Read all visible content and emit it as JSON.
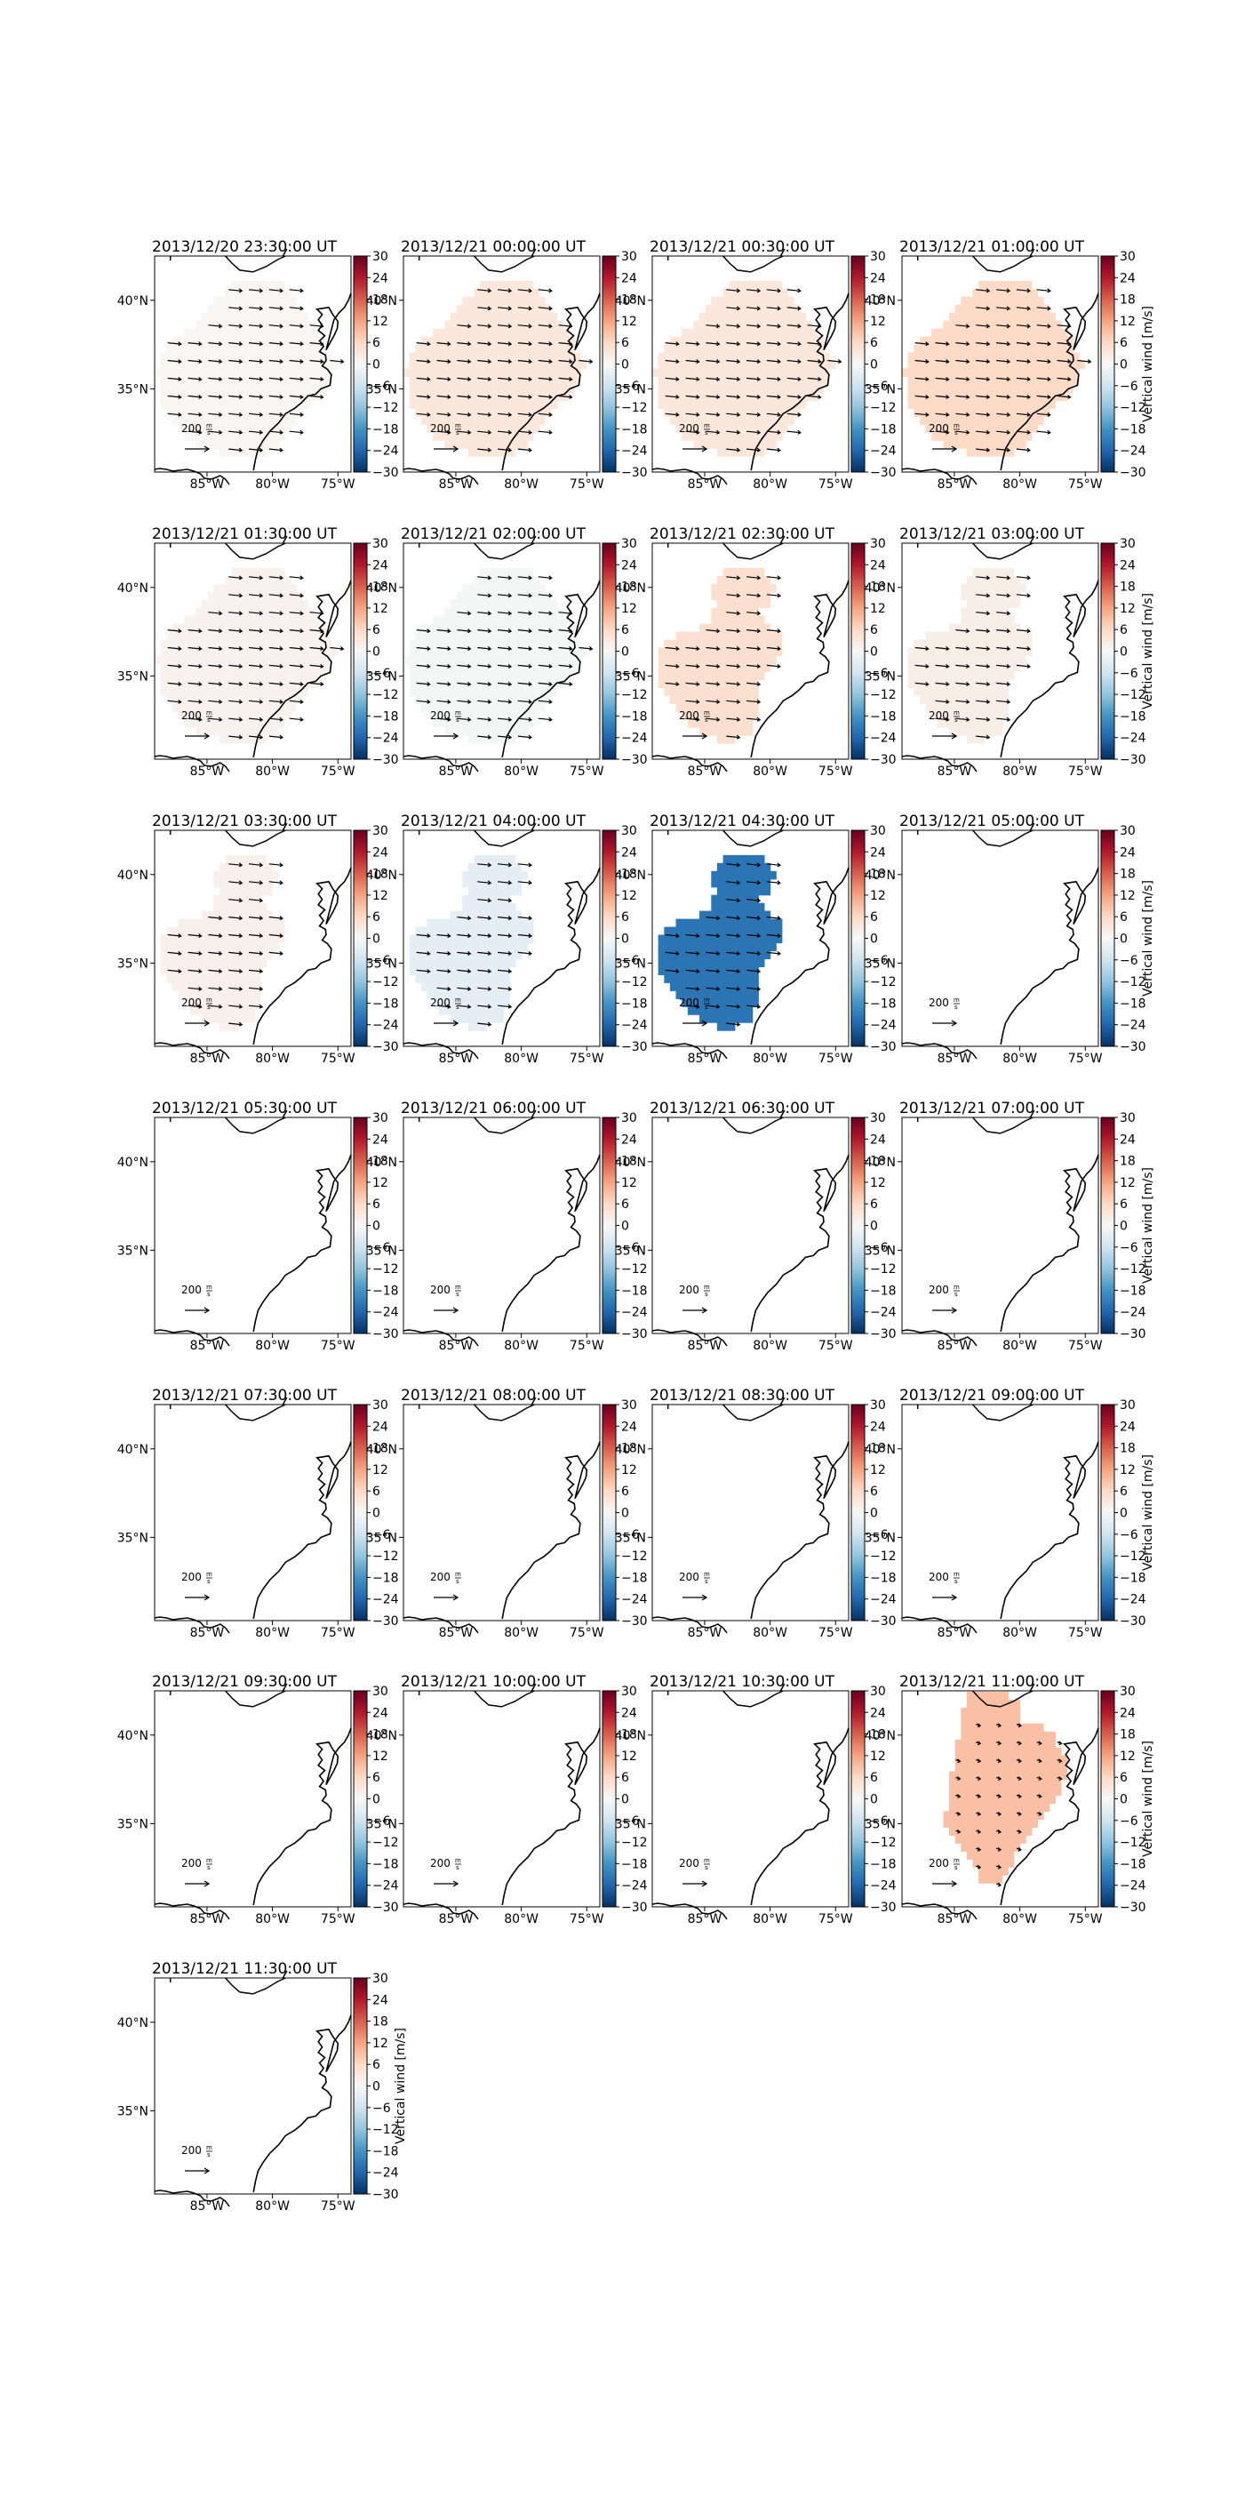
{
  "figure": {
    "colorbar": {
      "label": "Vertical wind [m/s]",
      "ticks": [
        "30",
        "24",
        "18",
        "12",
        "6",
        "0",
        "−6",
        "−12",
        "−18",
        "−24",
        "−30"
      ],
      "colormap": [
        "#053061",
        "#2166ac",
        "#4393c3",
        "#92c5de",
        "#d1e5f0",
        "#f7f7f7",
        "#fddbc7",
        "#f4a582",
        "#d6604d",
        "#b2182b",
        "#67001f"
      ],
      "vmin": -30,
      "vmax": 30
    },
    "lat_ticks": [
      "40°N",
      "35°N"
    ],
    "lon_ticks": [
      "85°W",
      "80°W",
      "75°W"
    ],
    "vector_key_label": "200",
    "vector_key_unit": "m/s"
  },
  "chart_data": [
    {
      "type": "heatmap",
      "title": "2013/12/20 23:30:00 UT",
      "vertical_wind_ms": 0.5,
      "has_data": true,
      "shape": "A",
      "colorbar_label": false
    },
    {
      "type": "heatmap",
      "title": "2013/12/21 00:00:00 UT",
      "vertical_wind_ms": 3.5,
      "has_data": true,
      "shape": "A",
      "colorbar_label": false
    },
    {
      "type": "heatmap",
      "title": "2013/12/21 00:30:00 UT",
      "vertical_wind_ms": 3.5,
      "has_data": true,
      "shape": "A",
      "colorbar_label": false
    },
    {
      "type": "heatmap",
      "title": "2013/12/21 01:00:00 UT",
      "vertical_wind_ms": 6,
      "has_data": true,
      "shape": "A",
      "colorbar_label": true
    },
    {
      "type": "heatmap",
      "title": "2013/12/21 01:30:00 UT",
      "vertical_wind_ms": 1,
      "has_data": true,
      "shape": "A",
      "colorbar_label": false
    },
    {
      "type": "heatmap",
      "title": "2013/12/21 02:00:00 UT",
      "vertical_wind_ms": -0.5,
      "has_data": true,
      "shape": "A",
      "colorbar_label": false
    },
    {
      "type": "heatmap",
      "title": "2013/12/21 02:30:00 UT",
      "vertical_wind_ms": 5,
      "has_data": true,
      "shape": "B",
      "colorbar_label": false
    },
    {
      "type": "heatmap",
      "title": "2013/12/21 03:00:00 UT",
      "vertical_wind_ms": 2,
      "has_data": true,
      "shape": "B",
      "colorbar_label": true
    },
    {
      "type": "heatmap",
      "title": "2013/12/21 03:30:00 UT",
      "vertical_wind_ms": 1.5,
      "has_data": true,
      "shape": "B",
      "colorbar_label": false
    },
    {
      "type": "heatmap",
      "title": "2013/12/21 04:00:00 UT",
      "vertical_wind_ms": -3,
      "has_data": true,
      "shape": "B",
      "colorbar_label": false
    },
    {
      "type": "heatmap",
      "title": "2013/12/21 04:30:00 UT",
      "vertical_wind_ms": -22,
      "has_data": true,
      "shape": "B",
      "colorbar_label": false
    },
    {
      "type": "heatmap",
      "title": "2013/12/21 05:00:00 UT",
      "vertical_wind_ms": null,
      "has_data": false,
      "shape": "none",
      "colorbar_label": true
    },
    {
      "type": "heatmap",
      "title": "2013/12/21 05:30:00 UT",
      "vertical_wind_ms": null,
      "has_data": false,
      "shape": "none",
      "colorbar_label": false
    },
    {
      "type": "heatmap",
      "title": "2013/12/21 06:00:00 UT",
      "vertical_wind_ms": null,
      "has_data": false,
      "shape": "none",
      "colorbar_label": false
    },
    {
      "type": "heatmap",
      "title": "2013/12/21 06:30:00 UT",
      "vertical_wind_ms": null,
      "has_data": false,
      "shape": "none",
      "colorbar_label": false
    },
    {
      "type": "heatmap",
      "title": "2013/12/21 07:00:00 UT",
      "vertical_wind_ms": null,
      "has_data": false,
      "shape": "none",
      "colorbar_label": true
    },
    {
      "type": "heatmap",
      "title": "2013/12/21 07:30:00 UT",
      "vertical_wind_ms": null,
      "has_data": false,
      "shape": "none",
      "colorbar_label": false
    },
    {
      "type": "heatmap",
      "title": "2013/12/21 08:00:00 UT",
      "vertical_wind_ms": null,
      "has_data": false,
      "shape": "none",
      "colorbar_label": false
    },
    {
      "type": "heatmap",
      "title": "2013/12/21 08:30:00 UT",
      "vertical_wind_ms": null,
      "has_data": false,
      "shape": "none",
      "colorbar_label": false
    },
    {
      "type": "heatmap",
      "title": "2013/12/21 09:00:00 UT",
      "vertical_wind_ms": null,
      "has_data": false,
      "shape": "none",
      "colorbar_label": true
    },
    {
      "type": "heatmap",
      "title": "2013/12/21 09:30:00 UT",
      "vertical_wind_ms": null,
      "has_data": false,
      "shape": "none",
      "colorbar_label": false
    },
    {
      "type": "heatmap",
      "title": "2013/12/21 10:00:00 UT",
      "vertical_wind_ms": null,
      "has_data": false,
      "shape": "none",
      "colorbar_label": false
    },
    {
      "type": "heatmap",
      "title": "2013/12/21 10:30:00 UT",
      "vertical_wind_ms": null,
      "has_data": false,
      "shape": "none",
      "colorbar_label": false
    },
    {
      "type": "heatmap",
      "title": "2013/12/21 11:00:00 UT",
      "vertical_wind_ms": 9,
      "has_data": true,
      "shape": "C",
      "colorbar_label": true
    },
    {
      "type": "heatmap",
      "title": "2013/12/21 11:30:00 UT",
      "vertical_wind_ms": null,
      "has_data": false,
      "shape": "none",
      "colorbar_label": true
    }
  ]
}
